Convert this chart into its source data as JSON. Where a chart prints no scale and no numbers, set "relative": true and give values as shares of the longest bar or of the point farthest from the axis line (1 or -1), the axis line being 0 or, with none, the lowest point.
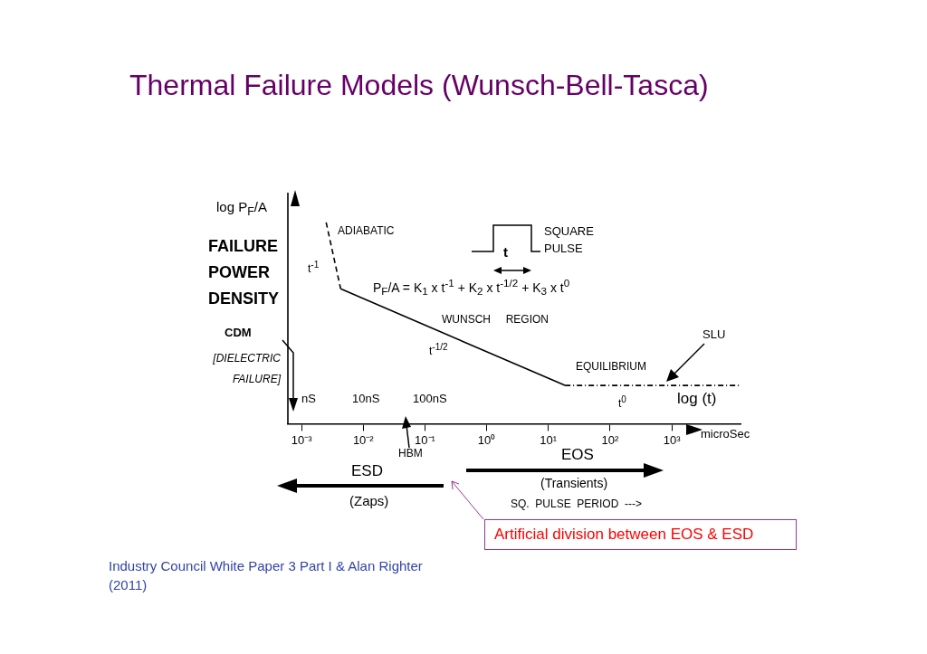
{
  "chart_data": {
    "type": "line",
    "title": "Thermal Failure Models (Wunsch-Bell-Tasca)",
    "relative": true,
    "log": "x",
    "xlabel": "log (t)",
    "ylabel": "FAILURE POWER DENSITY",
    "xlim": [
      0.0006,
      13000
    ],
    "xticks": [
      {
        "value": 0.001,
        "label": "10⁻³"
      },
      {
        "value": 0.01,
        "label": "10⁻²"
      },
      {
        "value": 0.1,
        "label": "10⁻¹"
      },
      {
        "value": 1,
        "label": "10⁰"
      },
      {
        "value": 10,
        "label": "10¹"
      },
      {
        "value": 100,
        "label": "10²"
      },
      {
        "value": 1000,
        "label": "10³"
      }
    ],
    "series": [
      {
        "color": "#000000",
        "line_style": "dashed",
        "x": [
          0.0025,
          0.0043
        ],
        "values": [
          1,
          0.67
        ]
      },
      {
        "color": "#000000",
        "line_style": "solid",
        "x": [
          0.0043,
          18.6
        ],
        "values": [
          0.67,
          0.19
        ]
      },
      {
        "color": "#000000",
        "line_style": "dotted",
        "x": [
          18.6,
          12600
        ],
        "values": [
          0.19,
          0.19
        ]
      }
    ],
    "grid": false,
    "legend": false,
    "marker": "none",
    "annotations": [
      "ADIABATIC",
      "t$^{-1}$",
      "SQUARE PULSE",
      "t",
      "P$_{F}$/A = K$_{1}$ x  t$^{-1}$ + K$_{2}$ x  t$^{-1/2}$ + K$_{3}$ x  t$^{0}$",
      "WUNSCH     REGION",
      "t$^{-1/2}$",
      "EQUILIBRIUM",
      "t$^{0}$",
      "SLU",
      "CDM",
      "[DIELECTRIC FAILURE]",
      "log  P$_{F}$/A",
      "nS",
      "10nS",
      "100nS",
      "microSec",
      "HBM",
      "ESD",
      "(Zaps)",
      "EOS",
      "(Transients)",
      "SQ.  PULSE  PERIOD  --->",
      "Artificial division between EOS & ESD",
      "Industry Council White Paper 3 Part I & Alan Righter (2011)"
    ]
  }
}
